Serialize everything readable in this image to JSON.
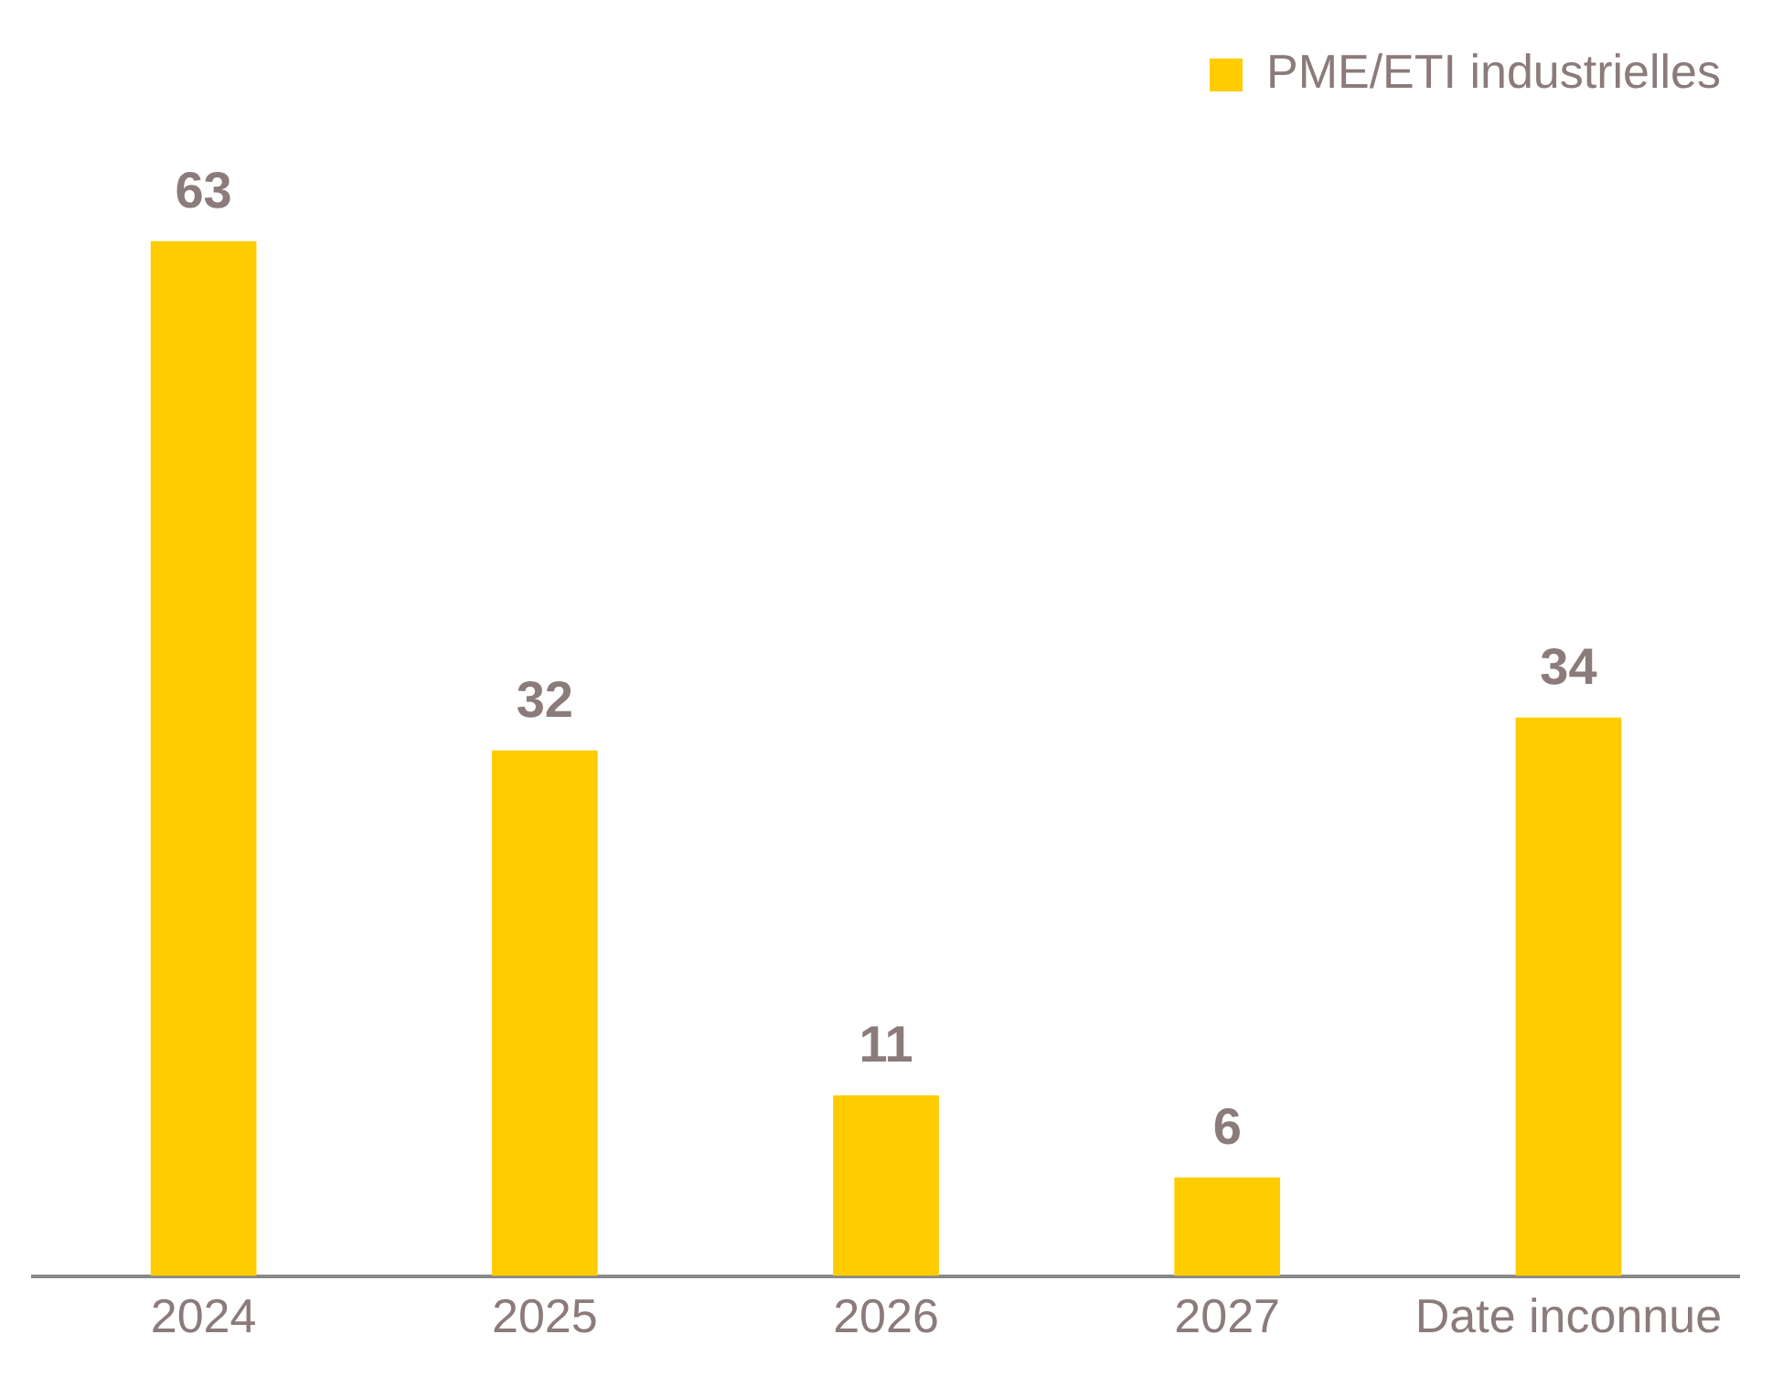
{
  "chart_data": {
    "type": "bar",
    "categories": [
      "2024",
      "2025",
      "2026",
      "2027",
      "Date inconnue"
    ],
    "series": [
      {
        "name": "PME/ETI industrielles",
        "color": "#ffcc00",
        "values": [
          63,
          32,
          11,
          6,
          34
        ]
      }
    ],
    "data_labels": true,
    "legend": "top right",
    "grid": false
  }
}
